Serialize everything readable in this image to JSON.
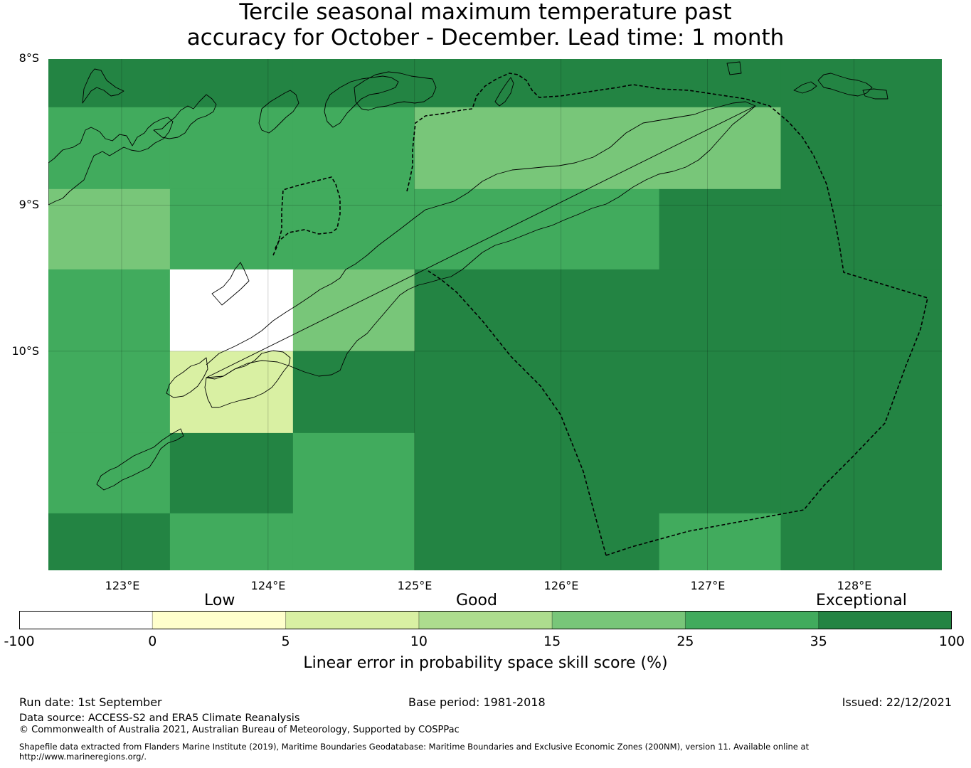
{
  "title": {
    "line1": "Tercile seasonal maximum temperature past",
    "line2": "accuracy for October - December. Lead time: 1 month"
  },
  "map": {
    "lat_labels": [
      "8°S",
      "9°S",
      "10°S"
    ],
    "lon_labels": [
      "123°E",
      "124°E",
      "125°E",
      "126°E",
      "127°E",
      "128°E"
    ],
    "lon_range": [
      122.5,
      128.6
    ],
    "lat_range": [
      -8.0,
      -11.5
    ],
    "coastline_color": "#000000",
    "eez_boundary_style": "dashed",
    "gridlines": true
  },
  "colorbar": {
    "categories": [
      "Low",
      "Good",
      "Exceptional"
    ],
    "ticks": [
      "-100",
      "0",
      "5",
      "10",
      "15",
      "25",
      "35",
      "100"
    ],
    "bounds": [
      -100,
      0,
      5,
      10,
      15,
      25,
      35,
      100
    ],
    "colors": [
      "#ffffff",
      "#ffffcc",
      "#d9f0a3",
      "#addd8e",
      "#78c679",
      "#41ab5d",
      "#238443"
    ],
    "label": "Linear error in probability space skill score (%)"
  },
  "chart_data": {
    "type": "heatmap",
    "title": "Tercile seasonal maximum temperature past accuracy for October - December. Lead time: 1 month",
    "xlabel": "",
    "ylabel": "",
    "cell_lon_edges": [
      122.5,
      123.33,
      124.17,
      125.0,
      125.83,
      126.67,
      127.5,
      128.6
    ],
    "cell_lat_edges": [
      -8.0,
      -8.33,
      -8.89,
      -9.44,
      -10.0,
      -10.56,
      -11.11,
      -11.5
    ],
    "legend_bounds": [
      -100,
      0,
      5,
      10,
      15,
      25,
      35,
      100
    ],
    "colors": [
      "#ffffff",
      "#ffffcc",
      "#d9f0a3",
      "#addd8e",
      "#78c679",
      "#41ab5d",
      "#238443"
    ],
    "category_grid": [
      [
        6,
        6,
        6,
        6,
        6,
        6,
        6
      ],
      [
        5,
        5,
        5,
        4,
        4,
        4,
        6
      ],
      [
        4,
        5,
        5,
        5,
        5,
        6,
        6
      ],
      [
        5,
        0,
        4,
        6,
        6,
        6,
        6
      ],
      [
        5,
        2,
        6,
        6,
        6,
        6,
        6
      ],
      [
        5,
        6,
        5,
        6,
        6,
        6,
        6
      ],
      [
        6,
        5,
        5,
        6,
        6,
        5,
        6
      ]
    ]
  },
  "footer": {
    "run_date": "Run date: 1st September",
    "base_period": "Base period: 1981-2018",
    "issued": "Issued: 22/12/2021",
    "data_source": "Data source: ACCESS-S2 and ERA5 Climate Reanalysis",
    "copyright": "© Commonwealth of Australia 2021, Australian Bureau of Meteorology, Supported by COSPPac",
    "shapefile_line1": "Shapefile data extracted from Flanders Marine Institute (2019), Maritime Boundaries Geodatabase: Maritime Boundaries and Exclusive Economic Zones (200NM), version 11. Available online at",
    "shapefile_line2": "http://www.marineregions.org/."
  }
}
